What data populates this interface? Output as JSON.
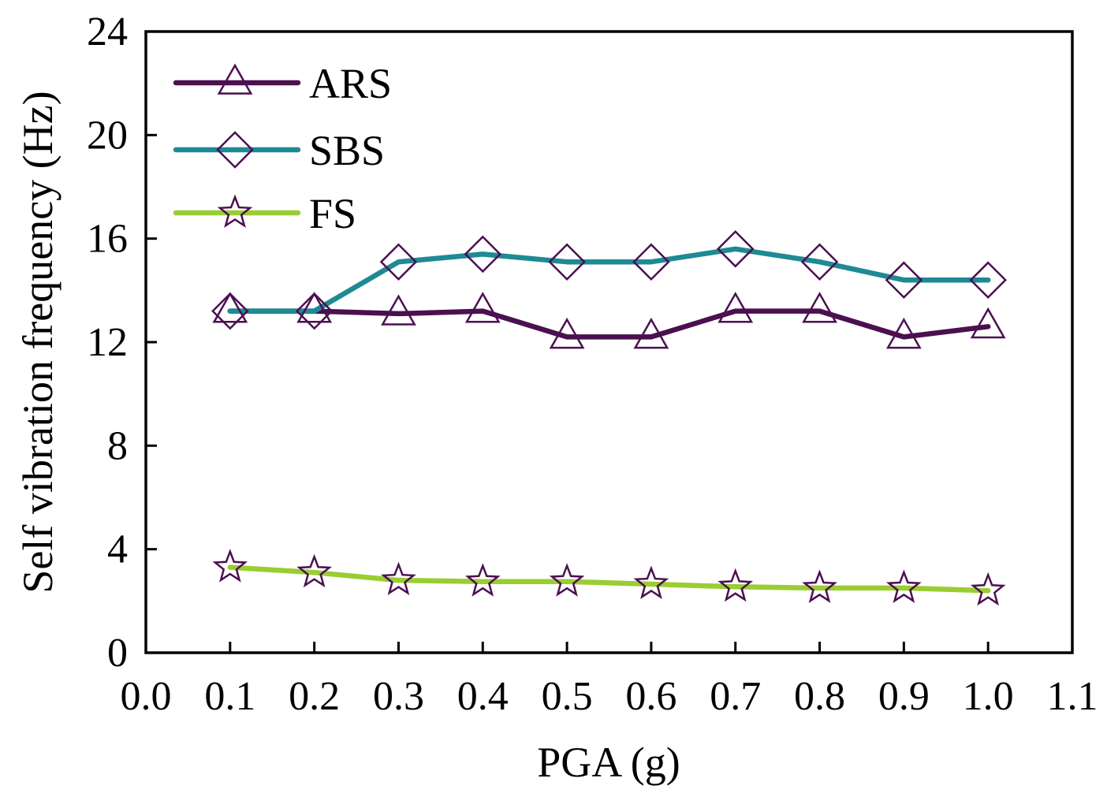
{
  "chart_data": {
    "type": "line",
    "title": "",
    "xlabel": "PGA (g)",
    "ylabel": "Self vibration frequency (Hz)",
    "xlim": [
      0.0,
      1.1
    ],
    "ylim": [
      0,
      24
    ],
    "xticks": [
      "0.0",
      "0.1",
      "0.2",
      "0.3",
      "0.4",
      "0.5",
      "0.6",
      "0.7",
      "0.8",
      "0.9",
      "1.0",
      "1.1"
    ],
    "yticks": [
      "0",
      "4",
      "8",
      "12",
      "16",
      "20",
      "24"
    ],
    "grid": false,
    "legend_position": "top-left",
    "x": [
      0.1,
      0.2,
      0.3,
      0.4,
      0.5,
      0.6,
      0.7,
      0.8,
      0.9,
      1.0
    ],
    "series": [
      {
        "name": "ARS",
        "marker": "triangle",
        "color": "#4b1050",
        "values": [
          13.2,
          13.2,
          13.1,
          13.2,
          12.2,
          12.2,
          13.2,
          13.2,
          12.2,
          12.6
        ]
      },
      {
        "name": "SBS",
        "marker": "diamond",
        "color": "#1e8a94",
        "values": [
          13.2,
          13.2,
          15.1,
          15.4,
          15.1,
          15.1,
          15.6,
          15.1,
          14.4,
          14.4
        ]
      },
      {
        "name": "FS",
        "marker": "star",
        "color": "#9acd32",
        "values": [
          3.3,
          3.1,
          2.8,
          2.75,
          2.75,
          2.65,
          2.55,
          2.5,
          2.5,
          2.4
        ]
      }
    ],
    "marker_edge_color": "#4b1050"
  }
}
